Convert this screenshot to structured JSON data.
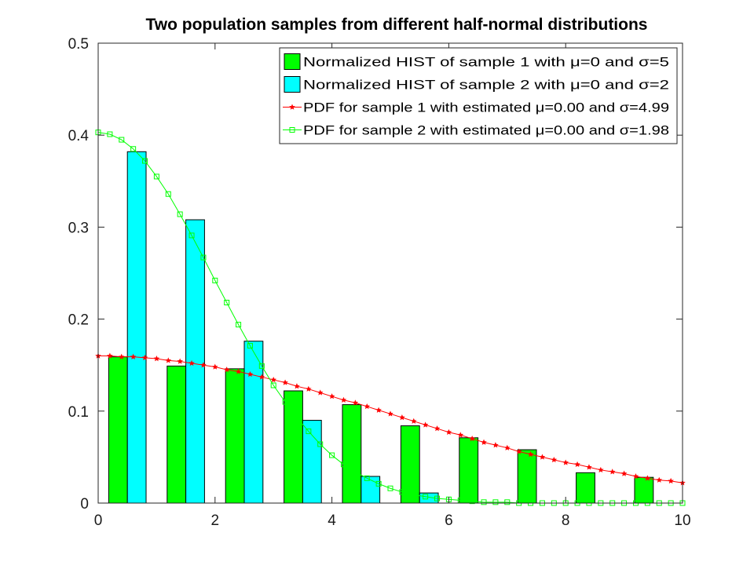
{
  "chart_data": {
    "type": "bar",
    "title": "Two population samples from different half-normal distributions",
    "xlabel": "",
    "ylabel": "",
    "xlim": [
      0,
      10
    ],
    "ylim": [
      0,
      0.5
    ],
    "xticks": [
      0,
      2,
      4,
      6,
      8,
      10
    ],
    "xtick_labels": [
      "0",
      "2",
      "4",
      "6",
      "8",
      "10"
    ],
    "yticks": [
      0,
      0.1,
      0.2,
      0.3,
      0.4,
      0.5
    ],
    "ytick_labels": [
      "0",
      "0.1",
      "0.2",
      "0.3",
      "0.4",
      "0.5"
    ],
    "grid": false,
    "legend_position": "top-right",
    "bar_groups": [
      0.5,
      1.5,
      2.5,
      3.5,
      4.5,
      5.5,
      6.5,
      7.5,
      8.5,
      9.5
    ],
    "bar_series": [
      {
        "name": "Normalized HIST of sample 1 with μ=0 and σ=5",
        "color": "#00ff00",
        "values": [
          0.159,
          0.149,
          0.146,
          0.122,
          0.107,
          0.084,
          0.071,
          0.058,
          0.033,
          0.028
        ]
      },
      {
        "name": "Normalized HIST of sample 2 with μ=0 and σ=2",
        "color": "#00ffff",
        "values": [
          0.382,
          0.308,
          0.176,
          0.09,
          0.029,
          0.011,
          0,
          0,
          0,
          0
        ]
      }
    ],
    "line_series": [
      {
        "name": "PDF for sample 1 with estimated μ=0.00 and σ=4.99",
        "color": "#ff0000",
        "marker": "star",
        "x": [
          0,
          0.2,
          0.4,
          0.6,
          0.8,
          1.0,
          1.2,
          1.4,
          1.6,
          1.8,
          2.0,
          2.2,
          2.4,
          2.6,
          2.8,
          3.0,
          3.2,
          3.4,
          3.6,
          3.8,
          4.0,
          4.2,
          4.4,
          4.6,
          4.8,
          5.0,
          5.2,
          5.4,
          5.6,
          5.8,
          6.0,
          6.2,
          6.4,
          6.6,
          6.8,
          7.0,
          7.2,
          7.4,
          7.6,
          7.8,
          8.0,
          8.2,
          8.4,
          8.6,
          8.8,
          9.0,
          9.2,
          9.4,
          9.6,
          9.8,
          10.0
        ],
        "y": [
          0.16,
          0.16,
          0.159,
          0.159,
          0.158,
          0.157,
          0.155,
          0.154,
          0.152,
          0.15,
          0.148,
          0.145,
          0.143,
          0.14,
          0.137,
          0.134,
          0.131,
          0.127,
          0.124,
          0.12,
          0.116,
          0.112,
          0.109,
          0.105,
          0.101,
          0.097,
          0.093,
          0.089,
          0.085,
          0.081,
          0.077,
          0.074,
          0.07,
          0.066,
          0.063,
          0.06,
          0.056,
          0.053,
          0.05,
          0.047,
          0.044,
          0.042,
          0.039,
          0.036,
          0.034,
          0.032,
          0.029,
          0.027,
          0.025,
          0.024,
          0.022
        ]
      },
      {
        "name": "PDF for sample 2 with estimated μ=0.00 and σ=1.98",
        "color": "#00ff00",
        "marker": "square",
        "x": [
          0,
          0.2,
          0.4,
          0.6,
          0.8,
          1.0,
          1.2,
          1.4,
          1.6,
          1.8,
          2.0,
          2.2,
          2.4,
          2.6,
          2.8,
          3.0,
          3.2,
          3.4,
          3.6,
          3.8,
          4.0,
          4.2,
          4.4,
          4.6,
          4.8,
          5.0,
          5.2,
          5.4,
          5.6,
          5.8,
          6.0,
          6.2,
          6.4,
          6.6,
          6.8,
          7.0,
          7.2,
          7.4,
          7.6,
          7.8,
          8.0,
          8.2,
          8.4,
          8.6,
          8.8,
          9.0,
          9.2,
          9.4,
          9.6,
          9.8,
          10.0
        ],
        "y": [
          0.403,
          0.401,
          0.395,
          0.385,
          0.372,
          0.355,
          0.336,
          0.314,
          0.291,
          0.267,
          0.242,
          0.218,
          0.194,
          0.171,
          0.149,
          0.128,
          0.11,
          0.093,
          0.078,
          0.064,
          0.052,
          0.042,
          0.034,
          0.027,
          0.021,
          0.016,
          0.012,
          0.009,
          0.007,
          0.005,
          0.004,
          0.003,
          0.002,
          0.001,
          0.001,
          0.001,
          0.0,
          0.0,
          0.0,
          0.0,
          0.0,
          0.0,
          0.0,
          0.0,
          0.0,
          0.0,
          0.0,
          0.0,
          0.0,
          0.0,
          0.0
        ]
      }
    ]
  }
}
